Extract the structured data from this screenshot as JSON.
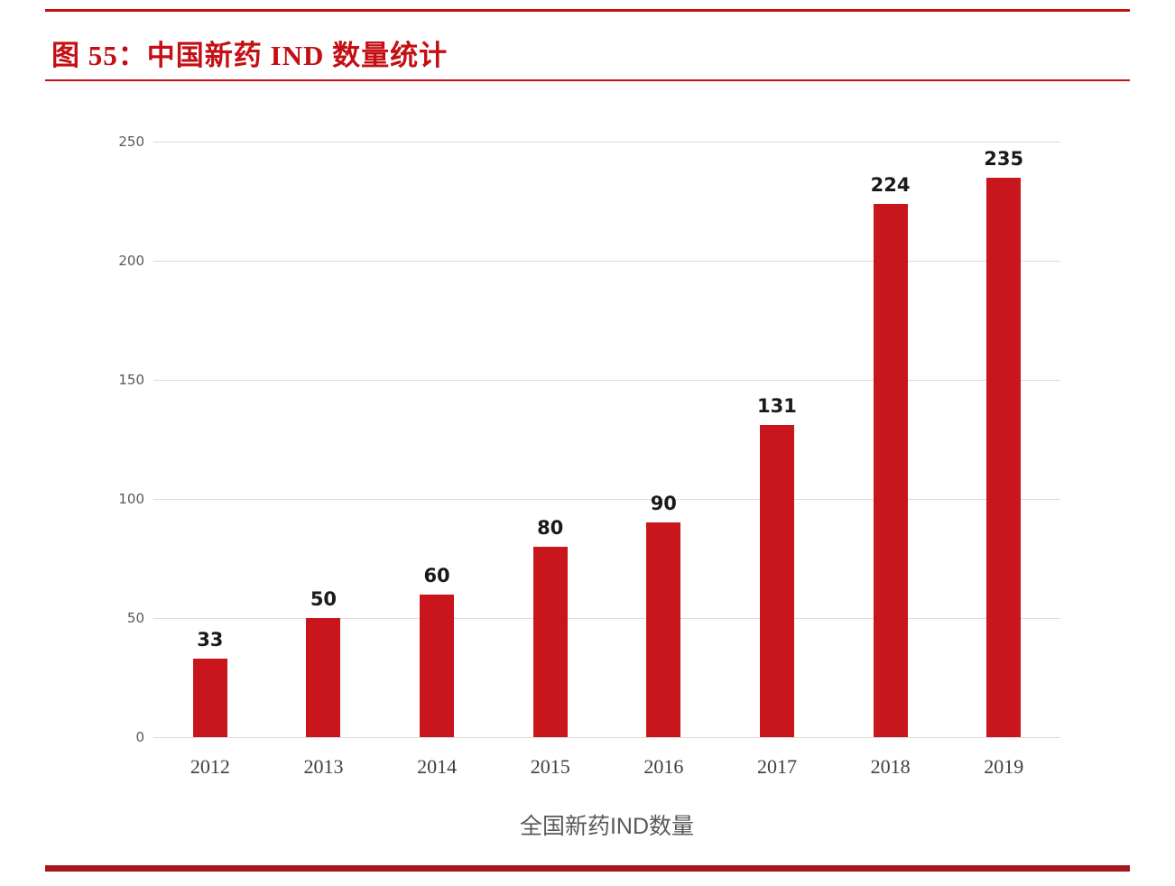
{
  "figure": {
    "title": "图  55：中国新药 IND 数量统计",
    "caption": "全国新药IND数量"
  },
  "colors": {
    "accent_red": "#C40F13",
    "bar_red": "#C9161D",
    "bottom_rule_red": "#A4171C",
    "gridline_gray": "#DCDCDC",
    "axis_label_gray": "#595959"
  },
  "chart_data": {
    "type": "bar",
    "categories": [
      "2012",
      "2013",
      "2014",
      "2015",
      "2016",
      "2017",
      "2018",
      "2019"
    ],
    "values": [
      33,
      50,
      60,
      80,
      90,
      131,
      224,
      235
    ],
    "title": "图 55：中国新药 IND 数量统计",
    "xlabel": "",
    "ylabel": "",
    "ylim": [
      0,
      250
    ],
    "yticks": [
      0,
      50,
      100,
      150,
      200,
      250
    ],
    "grid": true,
    "legend": "全国新药IND数量",
    "legend_position": "bottom",
    "bar_color": "#C9161D"
  }
}
